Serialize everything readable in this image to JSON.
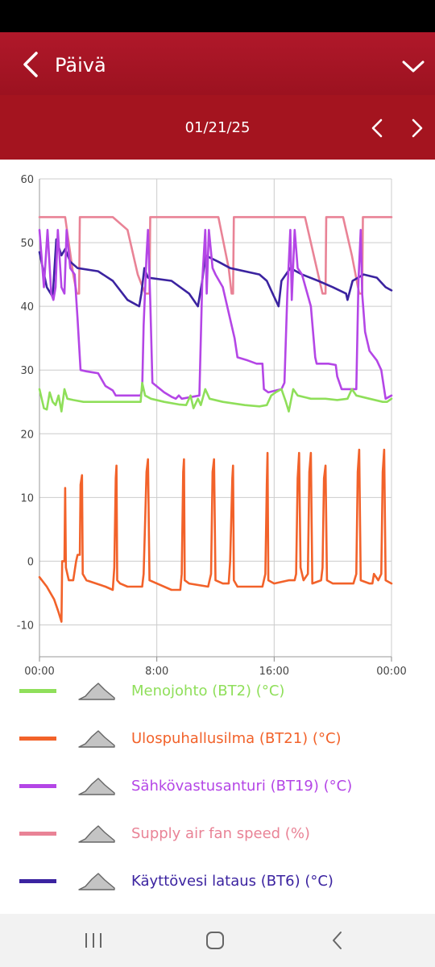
{
  "header": {
    "title": "Päivä"
  },
  "date_nav": {
    "date": "01/21/25"
  },
  "icons": {
    "back": "chevron-left-icon",
    "menu": "chevron-down-icon",
    "prev": "chevron-left-icon",
    "next": "chevron-right-icon",
    "legend_toggle": "area-chart-icon"
  },
  "colors": {
    "header_bg": "#a4141f",
    "grid": "#cccccc",
    "axis_text": "#444444"
  },
  "legend": [
    {
      "label": "Menojohto (BT2) (°C)",
      "color": "#8fdf5a"
    },
    {
      "label": "Ulospuhallusilma (BT21) (°C)",
      "color": "#f2622a"
    },
    {
      "label": "Sähkövastusanturi (BT19) (°C)",
      "color": "#b446e6"
    },
    {
      "label": "Supply air fan speed (%)",
      "color": "#e98396"
    },
    {
      "label": "Käyttövesi lataus (BT6) (°C)",
      "color": "#3b23a0"
    }
  ],
  "chart_data": {
    "type": "line",
    "x_unit": "hours",
    "xlim": [
      0,
      24
    ],
    "ylim": [
      -15,
      60
    ],
    "xticks": [
      0,
      8,
      16,
      24
    ],
    "xtick_labels": [
      "00:00",
      "8:00",
      "16:00",
      "00:00"
    ],
    "yticks": [
      60,
      50,
      40,
      30,
      20,
      10,
      0,
      -10
    ],
    "ytick_labels": [
      "60",
      "50",
      "40",
      "30",
      "20",
      "10",
      "0",
      "-10"
    ],
    "grid": true,
    "legend_position": "bottom",
    "series": [
      {
        "name": "Supply air fan speed (%)",
        "color": "#e98396",
        "points": [
          [
            0,
            54
          ],
          [
            1.75,
            54
          ],
          [
            2.3,
            45
          ],
          [
            2.55,
            42
          ],
          [
            2.7,
            42
          ],
          [
            2.75,
            54
          ],
          [
            5,
            54
          ],
          [
            6,
            52
          ],
          [
            6.7,
            45
          ],
          [
            7.2,
            42
          ],
          [
            7.5,
            42
          ],
          [
            7.55,
            54
          ],
          [
            12.2,
            54
          ],
          [
            12.9,
            46
          ],
          [
            13.1,
            42
          ],
          [
            13.2,
            42
          ],
          [
            13.25,
            54
          ],
          [
            18.1,
            54
          ],
          [
            18.7,
            48
          ],
          [
            19.3,
            42
          ],
          [
            19.5,
            42
          ],
          [
            19.55,
            54
          ],
          [
            20.7,
            54
          ],
          [
            21.3,
            48
          ],
          [
            21.8,
            42
          ],
          [
            22,
            42
          ],
          [
            22.05,
            54
          ],
          [
            24,
            54
          ]
        ]
      },
      {
        "name": "Käyttövesi lataus (BT6) (°C)",
        "color": "#3b23a0",
        "points": [
          [
            0,
            48.5
          ],
          [
            0.5,
            43
          ],
          [
            0.9,
            41.5
          ],
          [
            1.15,
            50.5
          ],
          [
            1.5,
            48
          ],
          [
            1.75,
            49
          ],
          [
            2.1,
            47
          ],
          [
            2.6,
            46
          ],
          [
            4,
            45.5
          ],
          [
            5,
            44
          ],
          [
            6,
            41
          ],
          [
            6.8,
            40
          ],
          [
            6.95,
            42
          ],
          [
            7.15,
            46
          ],
          [
            7.4,
            44.5
          ],
          [
            9,
            44
          ],
          [
            10.2,
            42
          ],
          [
            10.8,
            40
          ],
          [
            11.1,
            44
          ],
          [
            11.3,
            48
          ],
          [
            12.2,
            47
          ],
          [
            13,
            46
          ],
          [
            15,
            45
          ],
          [
            15.5,
            44
          ],
          [
            16,
            41.5
          ],
          [
            16.3,
            40
          ],
          [
            16.5,
            44
          ],
          [
            17.1,
            46
          ],
          [
            17.9,
            45
          ],
          [
            19,
            44
          ],
          [
            20,
            43
          ],
          [
            20.9,
            42
          ],
          [
            21,
            41
          ],
          [
            21.35,
            44
          ],
          [
            22.1,
            45
          ],
          [
            23,
            44.5
          ],
          [
            23.6,
            43
          ],
          [
            24,
            42.5
          ]
        ]
      },
      {
        "name": "Sähkövastusanturi (BT19) (°C)",
        "color": "#b446e6",
        "points": [
          [
            0,
            52
          ],
          [
            0.3,
            43
          ],
          [
            0.55,
            52
          ],
          [
            0.8,
            42
          ],
          [
            0.95,
            41
          ],
          [
            1.1,
            43
          ],
          [
            1.25,
            52
          ],
          [
            1.5,
            43
          ],
          [
            1.7,
            42
          ],
          [
            1.85,
            52
          ],
          [
            2.1,
            46
          ],
          [
            2.4,
            45
          ],
          [
            2.6,
            38
          ],
          [
            2.8,
            30
          ],
          [
            3.2,
            29.8
          ],
          [
            4,
            29.5
          ],
          [
            4.5,
            27.5
          ],
          [
            5,
            26.8
          ],
          [
            5.2,
            26
          ],
          [
            6.9,
            26
          ],
          [
            7,
            27
          ],
          [
            7.1,
            37
          ],
          [
            7.3,
            48
          ],
          [
            7.4,
            52
          ],
          [
            7.55,
            41
          ],
          [
            7.7,
            28
          ],
          [
            8.5,
            26.5
          ],
          [
            9,
            25.8
          ],
          [
            9.3,
            25.5
          ],
          [
            9.5,
            26
          ],
          [
            9.7,
            25.5
          ],
          [
            10.9,
            26
          ],
          [
            11.1,
            44
          ],
          [
            11.3,
            52
          ],
          [
            11.4,
            42
          ],
          [
            11.55,
            52
          ],
          [
            11.8,
            46
          ],
          [
            12,
            45
          ],
          [
            12.5,
            43
          ],
          [
            13,
            38
          ],
          [
            13.3,
            35
          ],
          [
            13.5,
            32
          ],
          [
            14.2,
            31.5
          ],
          [
            14.8,
            31
          ],
          [
            15.2,
            31
          ],
          [
            15.3,
            27
          ],
          [
            15.6,
            26.5
          ],
          [
            16.5,
            27
          ],
          [
            16.7,
            28
          ],
          [
            16.9,
            42
          ],
          [
            17.1,
            52
          ],
          [
            17.2,
            41
          ],
          [
            17.4,
            52
          ],
          [
            17.6,
            46
          ],
          [
            17.9,
            45
          ],
          [
            18.5,
            40
          ],
          [
            18.8,
            32
          ],
          [
            18.9,
            31
          ],
          [
            19.3,
            31
          ],
          [
            19.7,
            31
          ],
          [
            20.2,
            30.8
          ],
          [
            20.3,
            29
          ],
          [
            20.6,
            27
          ],
          [
            21.5,
            27
          ],
          [
            21.6,
            27
          ],
          [
            21.75,
            44
          ],
          [
            21.9,
            52
          ],
          [
            22,
            42
          ],
          [
            22.2,
            36
          ],
          [
            22.5,
            33
          ],
          [
            23,
            31.5
          ],
          [
            23.3,
            30
          ],
          [
            23.6,
            25.5
          ],
          [
            24,
            26
          ]
        ]
      },
      {
        "name": "Menojohto (BT2) (°C)",
        "color": "#8fdf5a",
        "points": [
          [
            0,
            27
          ],
          [
            0.3,
            24
          ],
          [
            0.5,
            23.8
          ],
          [
            0.7,
            26.5
          ],
          [
            0.9,
            25
          ],
          [
            1.1,
            24.5
          ],
          [
            1.3,
            26
          ],
          [
            1.5,
            23.5
          ],
          [
            1.7,
            27
          ],
          [
            1.9,
            25.5
          ],
          [
            2.3,
            25.3
          ],
          [
            3,
            25
          ],
          [
            3.5,
            25
          ],
          [
            4.5,
            25
          ],
          [
            5,
            25
          ],
          [
            6.9,
            25
          ],
          [
            7,
            28
          ],
          [
            7.2,
            26
          ],
          [
            7.6,
            25.5
          ],
          [
            8.5,
            25
          ],
          [
            9.5,
            24.6
          ],
          [
            10,
            24.5
          ],
          [
            10.3,
            26
          ],
          [
            10.5,
            24
          ],
          [
            10.8,
            25.5
          ],
          [
            11,
            24.5
          ],
          [
            11.3,
            27
          ],
          [
            11.6,
            25.5
          ],
          [
            12.5,
            25
          ],
          [
            14,
            24.5
          ],
          [
            15,
            24.3
          ],
          [
            15.5,
            24.5
          ],
          [
            15.8,
            26
          ],
          [
            16.1,
            26.5
          ],
          [
            16.5,
            27
          ],
          [
            16.8,
            25
          ],
          [
            17,
            23.5
          ],
          [
            17.3,
            27
          ],
          [
            17.6,
            26
          ],
          [
            18.5,
            25.5
          ],
          [
            19.5,
            25.5
          ],
          [
            20.3,
            25.3
          ],
          [
            21,
            25.5
          ],
          [
            21.3,
            27
          ],
          [
            21.6,
            26
          ],
          [
            22.5,
            25.5
          ],
          [
            23.4,
            25
          ],
          [
            23.7,
            25
          ],
          [
            24,
            25.5
          ]
        ]
      },
      {
        "name": "Ulospuhallusilma (BT21) (°C)",
        "color": "#f2622a",
        "points": [
          [
            0,
            -2.5
          ],
          [
            0.5,
            -4
          ],
          [
            1,
            -6
          ],
          [
            1.3,
            -8
          ],
          [
            1.5,
            -9.5
          ],
          [
            1.55,
            0
          ],
          [
            1.7,
            0
          ],
          [
            1.75,
            11.5
          ],
          [
            1.8,
            -1
          ],
          [
            2,
            -3
          ],
          [
            2.3,
            -3
          ],
          [
            2.5,
            0
          ],
          [
            2.6,
            1
          ],
          [
            2.75,
            1
          ],
          [
            2.8,
            12
          ],
          [
            2.9,
            13.5
          ],
          [
            2.95,
            -2
          ],
          [
            3.2,
            -3
          ],
          [
            4.5,
            -4
          ],
          [
            5,
            -4.5
          ],
          [
            5.1,
            -1
          ],
          [
            5.2,
            13
          ],
          [
            5.25,
            15
          ],
          [
            5.3,
            -3
          ],
          [
            5.5,
            -3.5
          ],
          [
            6,
            -4
          ],
          [
            7,
            -4
          ],
          [
            7.1,
            -2
          ],
          [
            7.3,
            14
          ],
          [
            7.4,
            16
          ],
          [
            7.5,
            -3
          ],
          [
            8,
            -3.5
          ],
          [
            9,
            -4.5
          ],
          [
            9.6,
            -4.5
          ],
          [
            9.7,
            -2
          ],
          [
            9.8,
            14
          ],
          [
            9.85,
            16
          ],
          [
            9.9,
            -3
          ],
          [
            10.2,
            -3.5
          ],
          [
            11.5,
            -4
          ],
          [
            11.7,
            -2
          ],
          [
            11.8,
            14
          ],
          [
            11.9,
            16
          ],
          [
            12,
            -3
          ],
          [
            12.5,
            -3.5
          ],
          [
            12.9,
            -3.5
          ],
          [
            13,
            0
          ],
          [
            13.15,
            13
          ],
          [
            13.2,
            15
          ],
          [
            13.25,
            -3
          ],
          [
            13.5,
            -4
          ],
          [
            14.2,
            -4
          ],
          [
            15.2,
            -4
          ],
          [
            15.4,
            -2
          ],
          [
            15.5,
            12
          ],
          [
            15.55,
            17
          ],
          [
            15.6,
            -3
          ],
          [
            16,
            -3.5
          ],
          [
            17,
            -3
          ],
          [
            17.4,
            -3
          ],
          [
            17.5,
            -2
          ],
          [
            17.6,
            13
          ],
          [
            17.7,
            17
          ],
          [
            17.8,
            -1
          ],
          [
            18,
            -3
          ],
          [
            18.3,
            -2
          ],
          [
            18.4,
            14
          ],
          [
            18.5,
            17
          ],
          [
            18.6,
            -3.5
          ],
          [
            19.2,
            -3
          ],
          [
            19.3,
            -1
          ],
          [
            19.4,
            13
          ],
          [
            19.5,
            15
          ],
          [
            19.6,
            -3
          ],
          [
            20,
            -3.5
          ],
          [
            21,
            -3.5
          ],
          [
            21.4,
            -3.5
          ],
          [
            21.6,
            -2
          ],
          [
            21.7,
            14
          ],
          [
            21.8,
            17.5
          ],
          [
            21.9,
            -3
          ],
          [
            22.5,
            -3.5
          ],
          [
            22.7,
            -3.5
          ],
          [
            22.8,
            -2
          ],
          [
            23.1,
            -3
          ],
          [
            23.3,
            -2
          ],
          [
            23.4,
            14
          ],
          [
            23.5,
            17.5
          ],
          [
            23.6,
            -3
          ],
          [
            24,
            -3.5
          ]
        ]
      }
    ]
  }
}
